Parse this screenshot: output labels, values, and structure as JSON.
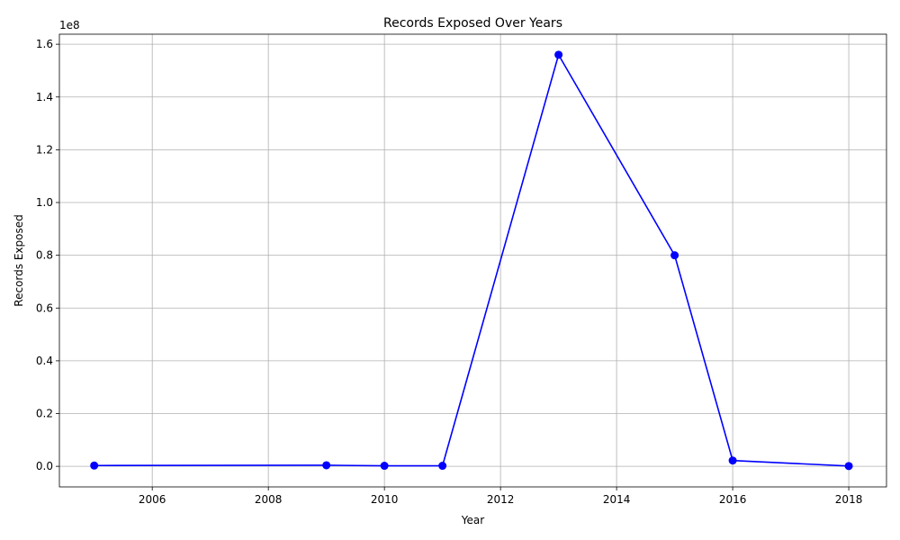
{
  "chart_data": {
    "type": "line",
    "title": "Records Exposed Over Years",
    "xlabel": "Year",
    "ylabel": "Records Exposed",
    "y_offset_text": "1e8",
    "xlim": [
      2004.4,
      2018.65
    ],
    "ylim": [
      -0.078,
      1.638
    ],
    "x_ticks": [
      2006,
      2008,
      2010,
      2012,
      2014,
      2016,
      2018
    ],
    "x_tick_labels": [
      "2006",
      "2008",
      "2010",
      "2012",
      "2014",
      "2016",
      "2018"
    ],
    "y_ticks": [
      0.0,
      0.2,
      0.4,
      0.6,
      0.8,
      1.0,
      1.2,
      1.4,
      1.6
    ],
    "y_tick_labels": [
      "0.0",
      "0.2",
      "0.4",
      "0.6",
      "0.8",
      "1.0",
      "1.2",
      "1.4",
      "1.6"
    ],
    "grid": true,
    "series": [
      {
        "color": "#0000ff",
        "marker": "circle",
        "x": [
          2005,
          2009,
          2010,
          2011,
          2013,
          2015,
          2016,
          2018
        ],
        "y": [
          0.003,
          0.004,
          0.002,
          0.002,
          1.56,
          0.8,
          0.022,
          0.001
        ]
      }
    ]
  }
}
